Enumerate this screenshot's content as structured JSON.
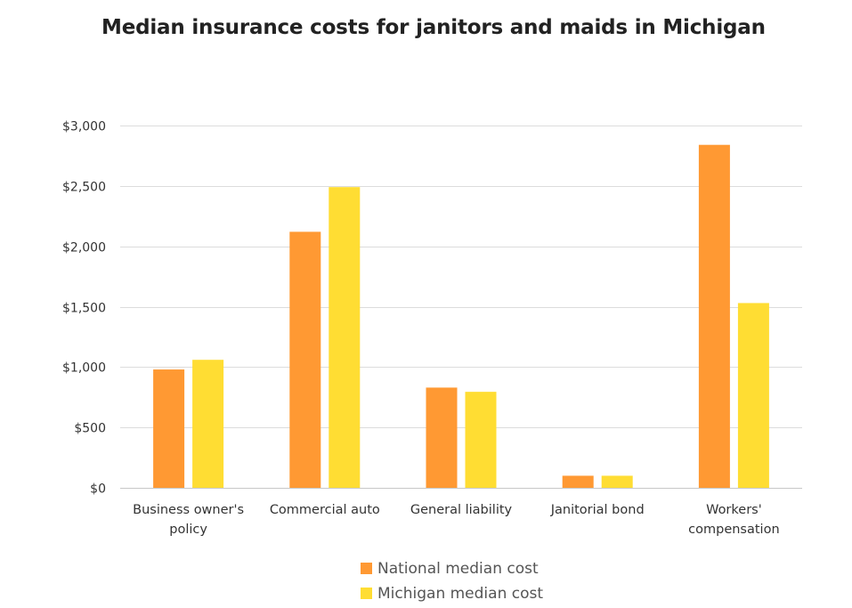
{
  "chart_data": {
    "type": "bar",
    "title": "Median insurance costs for janitors and maids in Michigan",
    "xlabel": "",
    "ylabel": "",
    "ylim": [
      0,
      3000
    ],
    "yticks": [
      0,
      500,
      1000,
      1500,
      2000,
      2500,
      3000
    ],
    "ytick_labels": [
      "$0",
      "$500",
      "$1,000",
      "$1,500",
      "$2,000",
      "$2,500",
      "$3,000"
    ],
    "categories": [
      [
        "Business owner's",
        "policy"
      ],
      [
        "Commercial auto"
      ],
      [
        "General liability"
      ],
      [
        "Janitorial bond"
      ],
      [
        "Workers'",
        "compensation"
      ]
    ],
    "series": [
      {
        "name": "National median cost",
        "color": "#FF9933",
        "values": [
          980,
          2120,
          830,
          100,
          2840
        ]
      },
      {
        "name": "Michigan median cost",
        "color": "#FFDD33",
        "values": [
          1060,
          2490,
          795,
          100,
          1530
        ]
      }
    ],
    "grid": true,
    "legend_position": "bottom"
  }
}
